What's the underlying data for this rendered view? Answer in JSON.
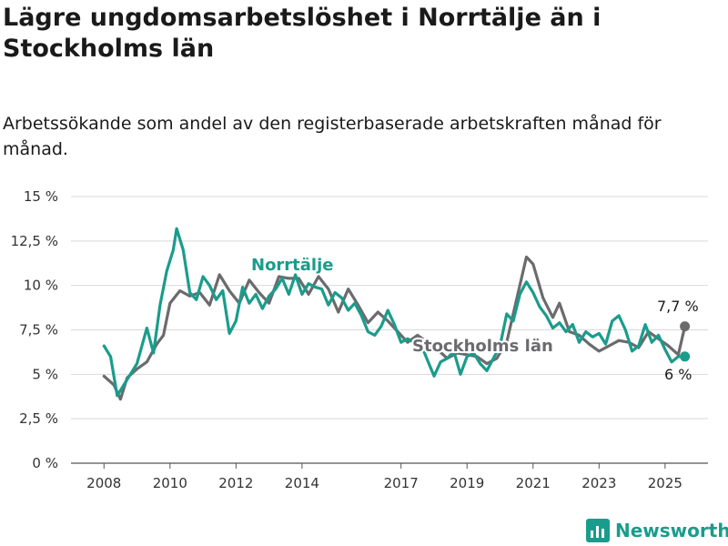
{
  "title": "Lägre ungdomsarbetslöshet i Norrtälje än i Stockholms län",
  "subtitle": "Arbetssökande som andel av den registerbaserade arbetskraften månad för månad.",
  "brand": {
    "name": "Newsworthy",
    "color": "#1a9c8c"
  },
  "chart_data": {
    "type": "line",
    "x_ticks": [
      2008,
      2010,
      2012,
      2014,
      2017,
      2019,
      2021,
      2023,
      2025
    ],
    "y_ticks": [
      "0 %",
      "2,5 %",
      "5 %",
      "7,5 %",
      "10 %",
      "12,5 %",
      "15 %"
    ],
    "y_tick_values": [
      0,
      2.5,
      5,
      7.5,
      10,
      12.5,
      15
    ],
    "ylim": [
      0,
      15
    ],
    "xlim": [
      2007.0,
      2026.3
    ],
    "grid": true,
    "series": [
      {
        "name": "Stockholms län",
        "color": "#6b6b6e",
        "points": [
          [
            2008.0,
            4.9
          ],
          [
            2008.3,
            4.4
          ],
          [
            2008.5,
            3.6
          ],
          [
            2008.7,
            4.8
          ],
          [
            2009.0,
            5.3
          ],
          [
            2009.3,
            5.7
          ],
          [
            2009.6,
            6.7
          ],
          [
            2009.8,
            7.2
          ],
          [
            2010.0,
            9.0
          ],
          [
            2010.3,
            9.7
          ],
          [
            2010.6,
            9.4
          ],
          [
            2010.9,
            9.6
          ],
          [
            2011.2,
            8.9
          ],
          [
            2011.5,
            10.6
          ],
          [
            2011.8,
            9.7
          ],
          [
            2012.1,
            9.0
          ],
          [
            2012.4,
            10.3
          ],
          [
            2012.7,
            9.6
          ],
          [
            2013.0,
            9.0
          ],
          [
            2013.3,
            10.5
          ],
          [
            2013.6,
            10.4
          ],
          [
            2013.9,
            10.4
          ],
          [
            2014.2,
            9.5
          ],
          [
            2014.5,
            10.5
          ],
          [
            2014.8,
            9.8
          ],
          [
            2015.1,
            8.5
          ],
          [
            2015.4,
            9.8
          ],
          [
            2015.7,
            8.9
          ],
          [
            2016.0,
            7.9
          ],
          [
            2016.3,
            8.5
          ],
          [
            2016.6,
            8.0
          ],
          [
            2016.9,
            7.4
          ],
          [
            2017.2,
            6.8
          ],
          [
            2017.5,
            7.2
          ],
          [
            2017.8,
            6.8
          ],
          [
            2018.1,
            6.4
          ],
          [
            2018.4,
            5.9
          ],
          [
            2018.7,
            6.2
          ],
          [
            2019.0,
            6.1
          ],
          [
            2019.3,
            6.0
          ],
          [
            2019.6,
            5.6
          ],
          [
            2019.9,
            5.9
          ],
          [
            2020.2,
            6.8
          ],
          [
            2020.5,
            9.2
          ],
          [
            2020.8,
            11.6
          ],
          [
            2021.0,
            11.2
          ],
          [
            2021.3,
            9.3
          ],
          [
            2021.6,
            8.2
          ],
          [
            2021.8,
            9.0
          ],
          [
            2022.1,
            7.4
          ],
          [
            2022.4,
            7.2
          ],
          [
            2022.7,
            6.7
          ],
          [
            2023.0,
            6.3
          ],
          [
            2023.3,
            6.6
          ],
          [
            2023.6,
            6.9
          ],
          [
            2023.9,
            6.8
          ],
          [
            2024.2,
            6.5
          ],
          [
            2024.5,
            7.4
          ],
          [
            2024.8,
            7.0
          ],
          [
            2025.1,
            6.6
          ],
          [
            2025.4,
            6.1
          ],
          [
            2025.6,
            7.7
          ]
        ]
      },
      {
        "name": "Norrtälje",
        "color": "#1a9c8c",
        "points": [
          [
            2008.0,
            6.6
          ],
          [
            2008.2,
            6.0
          ],
          [
            2008.4,
            3.8
          ],
          [
            2008.6,
            4.4
          ],
          [
            2008.8,
            5.0
          ],
          [
            2009.0,
            5.6
          ],
          [
            2009.3,
            7.6
          ],
          [
            2009.5,
            6.2
          ],
          [
            2009.7,
            8.9
          ],
          [
            2009.9,
            10.8
          ],
          [
            2010.1,
            12.0
          ],
          [
            2010.2,
            13.2
          ],
          [
            2010.4,
            12.0
          ],
          [
            2010.6,
            9.6
          ],
          [
            2010.8,
            9.2
          ],
          [
            2011.0,
            10.5
          ],
          [
            2011.2,
            10.0
          ],
          [
            2011.4,
            9.2
          ],
          [
            2011.6,
            9.7
          ],
          [
            2011.8,
            7.3
          ],
          [
            2012.0,
            8.0
          ],
          [
            2012.2,
            9.9
          ],
          [
            2012.4,
            9.0
          ],
          [
            2012.6,
            9.5
          ],
          [
            2012.8,
            8.7
          ],
          [
            2013.0,
            9.4
          ],
          [
            2013.2,
            9.8
          ],
          [
            2013.4,
            10.4
          ],
          [
            2013.6,
            9.5
          ],
          [
            2013.8,
            10.6
          ],
          [
            2014.0,
            9.5
          ],
          [
            2014.2,
            10.1
          ],
          [
            2014.4,
            9.9
          ],
          [
            2014.6,
            9.8
          ],
          [
            2014.8,
            8.9
          ],
          [
            2015.0,
            9.6
          ],
          [
            2015.2,
            9.3
          ],
          [
            2015.4,
            8.6
          ],
          [
            2015.6,
            9.0
          ],
          [
            2015.8,
            8.3
          ],
          [
            2016.0,
            7.4
          ],
          [
            2016.2,
            7.2
          ],
          [
            2016.4,
            7.7
          ],
          [
            2016.6,
            8.6
          ],
          [
            2016.8,
            7.8
          ],
          [
            2017.0,
            6.8
          ],
          [
            2017.2,
            7.0
          ],
          [
            2017.4,
            6.8
          ],
          [
            2017.6,
            6.7
          ],
          [
            2017.8,
            5.8
          ],
          [
            2018.0,
            4.9
          ],
          [
            2018.2,
            5.7
          ],
          [
            2018.4,
            5.9
          ],
          [
            2018.6,
            6.3
          ],
          [
            2018.8,
            5.0
          ],
          [
            2019.0,
            6.0
          ],
          [
            2019.2,
            6.2
          ],
          [
            2019.4,
            5.6
          ],
          [
            2019.6,
            5.2
          ],
          [
            2019.8,
            5.9
          ],
          [
            2020.0,
            6.6
          ],
          [
            2020.2,
            8.4
          ],
          [
            2020.4,
            8.0
          ],
          [
            2020.6,
            9.5
          ],
          [
            2020.8,
            10.2
          ],
          [
            2021.0,
            9.6
          ],
          [
            2021.2,
            8.8
          ],
          [
            2021.4,
            8.3
          ],
          [
            2021.6,
            7.6
          ],
          [
            2021.8,
            7.9
          ],
          [
            2022.0,
            7.4
          ],
          [
            2022.2,
            7.8
          ],
          [
            2022.4,
            6.8
          ],
          [
            2022.6,
            7.4
          ],
          [
            2022.8,
            7.1
          ],
          [
            2023.0,
            7.3
          ],
          [
            2023.2,
            6.7
          ],
          [
            2023.4,
            8.0
          ],
          [
            2023.6,
            8.3
          ],
          [
            2023.8,
            7.5
          ],
          [
            2024.0,
            6.3
          ],
          [
            2024.2,
            6.6
          ],
          [
            2024.4,
            7.8
          ],
          [
            2024.6,
            6.8
          ],
          [
            2024.8,
            7.2
          ],
          [
            2025.0,
            6.4
          ],
          [
            2025.2,
            5.7
          ],
          [
            2025.4,
            6.0
          ],
          [
            2025.6,
            6.0
          ]
        ]
      }
    ],
    "labels": {
      "norrtalje": "Norrtälje",
      "stockholm": "Stockholms län",
      "end_stockholm": "7,7 %",
      "end_norrtalje": "6 %"
    }
  }
}
